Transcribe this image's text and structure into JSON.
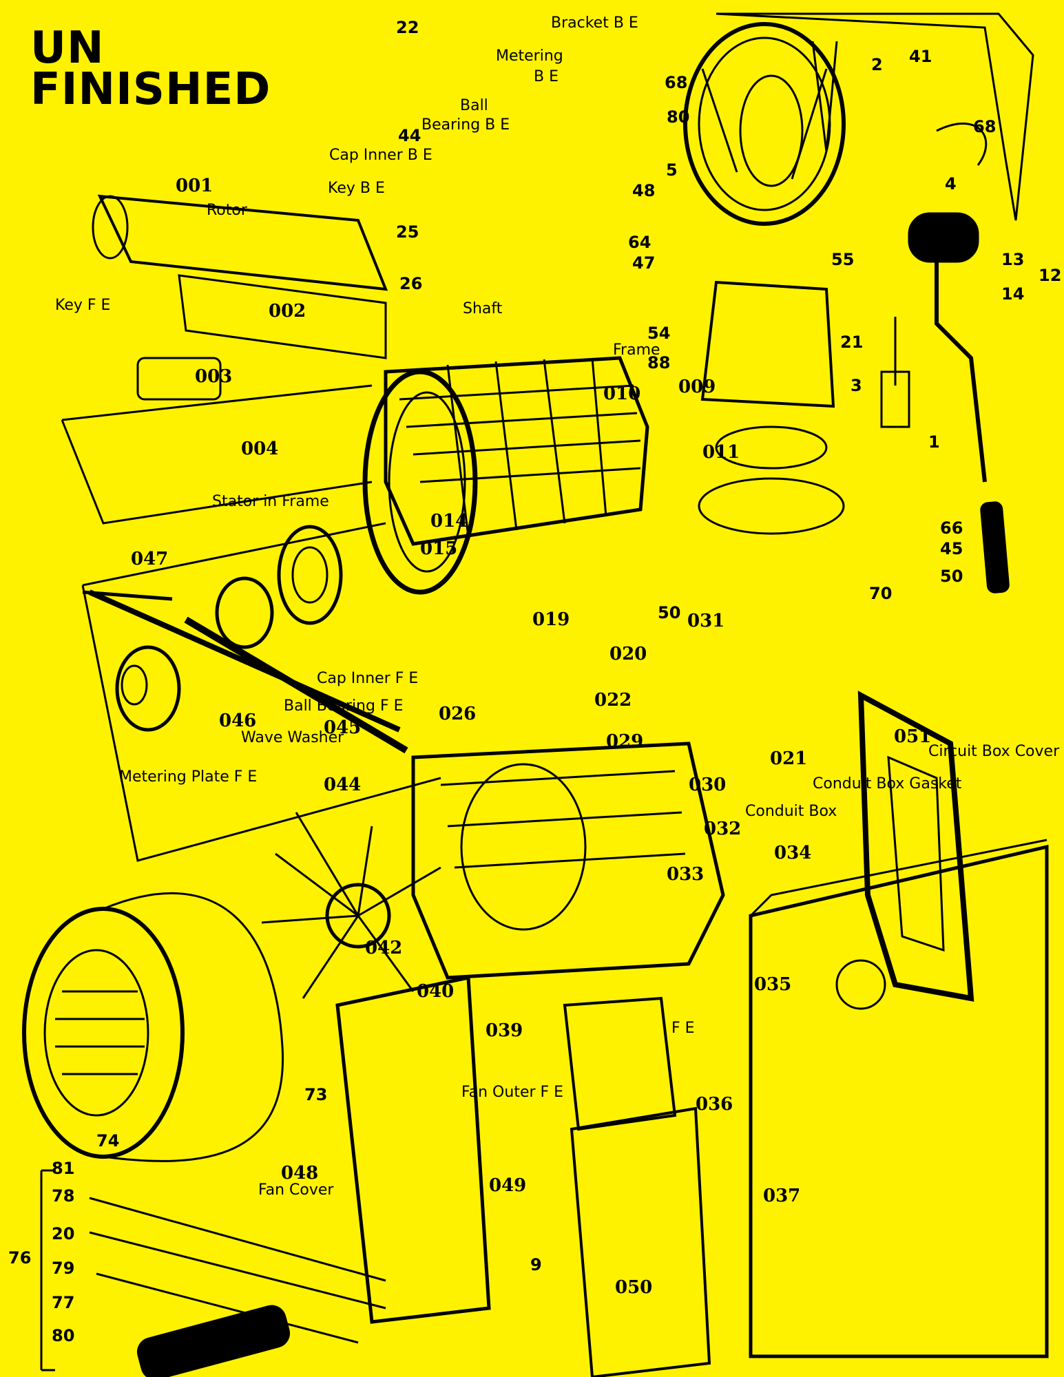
{
  "brand": {
    "line1": "UN",
    "line2": "FINISHED"
  },
  "colors": {
    "background": "#FFF200",
    "ink": "#000000"
  },
  "labels": [
    {
      "id": "l1",
      "text": "22"
    },
    {
      "id": "l2",
      "text": "Bracket B E"
    },
    {
      "id": "l3",
      "text": "Metering"
    },
    {
      "id": "l4",
      "text": "B E"
    },
    {
      "id": "l5",
      "text": "Ball"
    },
    {
      "id": "l6",
      "text": "Bearing B E"
    },
    {
      "id": "l7",
      "text": "44"
    },
    {
      "id": "l8",
      "text": "Cap Inner B E"
    },
    {
      "id": "l9",
      "text": "Key B E"
    },
    {
      "id": "l10",
      "text": "001"
    },
    {
      "id": "l11",
      "text": "Rotor"
    },
    {
      "id": "l12",
      "text": "25"
    },
    {
      "id": "l13",
      "text": "26"
    },
    {
      "id": "l14",
      "text": "Shaft"
    },
    {
      "id": "l15",
      "text": "Key F E"
    },
    {
      "id": "l16",
      "text": "002"
    },
    {
      "id": "l17",
      "text": "003"
    },
    {
      "id": "l18",
      "text": "004"
    },
    {
      "id": "l19",
      "text": "Stator in Frame"
    },
    {
      "id": "l20",
      "text": "014"
    },
    {
      "id": "l21",
      "text": "015"
    },
    {
      "id": "l22",
      "text": "047"
    },
    {
      "id": "l23",
      "text": "Cap Inner F E"
    },
    {
      "id": "l24",
      "text": "Ball Bearing F E"
    },
    {
      "id": "l25",
      "text": "046"
    },
    {
      "id": "l26",
      "text": "Wave Washer"
    },
    {
      "id": "l27",
      "text": "045"
    },
    {
      "id": "l28",
      "text": "Metering Plate F E"
    },
    {
      "id": "l29",
      "text": "044"
    },
    {
      "id": "l30",
      "text": "41"
    },
    {
      "id": "l31",
      "text": "2"
    },
    {
      "id": "l32",
      "text": "68"
    },
    {
      "id": "l33",
      "text": "68"
    },
    {
      "id": "l34",
      "text": "80"
    },
    {
      "id": "l35",
      "text": "5"
    },
    {
      "id": "l36",
      "text": "48"
    },
    {
      "id": "l37",
      "text": "4"
    },
    {
      "id": "l38",
      "text": "64"
    },
    {
      "id": "l39",
      "text": "47"
    },
    {
      "id": "l40",
      "text": "55"
    },
    {
      "id": "l41",
      "text": "13"
    },
    {
      "id": "l42",
      "text": "14"
    },
    {
      "id": "l43",
      "text": "12"
    },
    {
      "id": "l44",
      "text": "54"
    },
    {
      "id": "l45",
      "text": "Frame"
    },
    {
      "id": "l46",
      "text": "88"
    },
    {
      "id": "l47",
      "text": "21"
    },
    {
      "id": "l48",
      "text": "3"
    },
    {
      "id": "l49",
      "text": "010"
    },
    {
      "id": "l50",
      "text": "009"
    },
    {
      "id": "l51",
      "text": "1"
    },
    {
      "id": "l52",
      "text": "011"
    },
    {
      "id": "l53",
      "text": "66"
    },
    {
      "id": "l54",
      "text": "45"
    },
    {
      "id": "l55",
      "text": "50"
    },
    {
      "id": "l56",
      "text": "70"
    },
    {
      "id": "l57",
      "text": "50"
    },
    {
      "id": "l58",
      "text": "031"
    },
    {
      "id": "l59",
      "text": "019"
    },
    {
      "id": "l60",
      "text": "020"
    },
    {
      "id": "l61",
      "text": "022"
    },
    {
      "id": "l62",
      "text": "026"
    },
    {
      "id": "l63",
      "text": "029"
    },
    {
      "id": "l64",
      "text": "030"
    },
    {
      "id": "l65",
      "text": "021"
    },
    {
      "id": "l66",
      "text": "051"
    },
    {
      "id": "l67",
      "text": "Circuit Box Cover"
    },
    {
      "id": "l68",
      "text": "Conduit Box Gasket"
    },
    {
      "id": "l69",
      "text": "Conduit Box"
    },
    {
      "id": "l70",
      "text": "032"
    },
    {
      "id": "l71",
      "text": "034"
    },
    {
      "id": "l72",
      "text": "033"
    },
    {
      "id": "l73",
      "text": "035"
    },
    {
      "id": "l74",
      "text": "042"
    },
    {
      "id": "l75",
      "text": "040"
    },
    {
      "id": "l76",
      "text": "039"
    },
    {
      "id": "l77",
      "text": "Fan Outer F E"
    },
    {
      "id": "l78",
      "text": "036"
    },
    {
      "id": "l79",
      "text": "73"
    },
    {
      "id": "l80",
      "text": "74"
    },
    {
      "id": "l81",
      "text": "048"
    },
    {
      "id": "l82",
      "text": "049"
    },
    {
      "id": "l83",
      "text": "037"
    },
    {
      "id": "l84",
      "text": "050"
    },
    {
      "id": "l85",
      "text": "81"
    },
    {
      "id": "l86",
      "text": "78"
    },
    {
      "id": "l87",
      "text": "20"
    },
    {
      "id": "l88",
      "text": "76"
    },
    {
      "id": "l89",
      "text": "79"
    },
    {
      "id": "l90",
      "text": "77"
    },
    {
      "id": "l91",
      "text": "80"
    },
    {
      "id": "l92",
      "text": "9"
    },
    {
      "id": "l93",
      "text": "F E"
    },
    {
      "id": "l94",
      "text": "Fan Cover"
    }
  ]
}
